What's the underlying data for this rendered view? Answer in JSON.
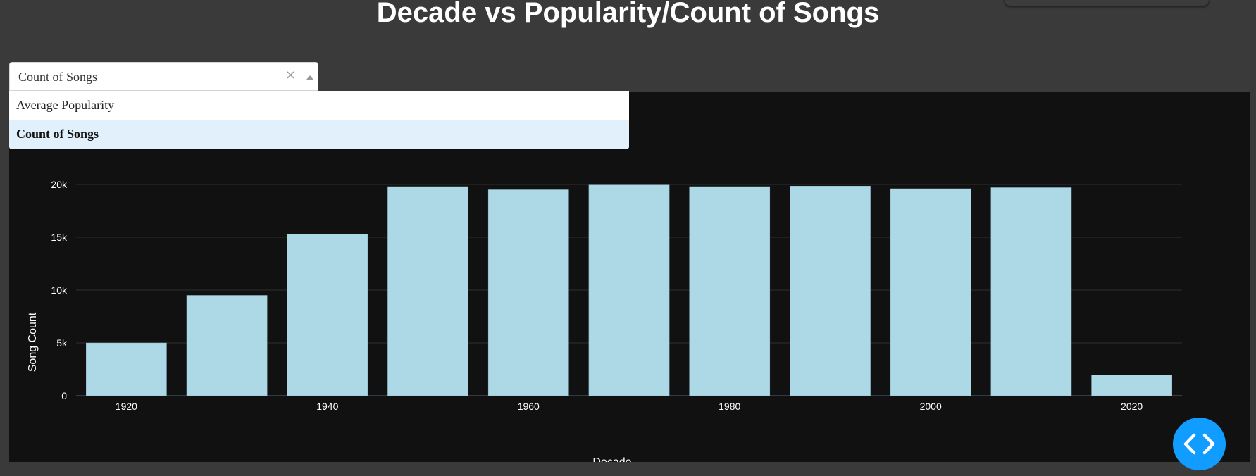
{
  "header": {
    "title": "Decade vs Popularity/Count of Songs"
  },
  "dropdown": {
    "value": "Count of Songs",
    "clear_glyph": "×",
    "options": [
      {
        "label": "Average Popularity",
        "selected": false
      },
      {
        "label": "Count of Songs",
        "selected": true
      }
    ]
  },
  "icons": {
    "clear": "clear-icon",
    "arrow": "caret-up-icon",
    "dev_tools": "code-brackets-icon"
  },
  "colors": {
    "bar": "#add8e6",
    "plot_bg": "#111111",
    "grid": "#2e2e2e",
    "dev_button": "#119dff"
  },
  "chart_data": {
    "type": "bar",
    "x": [
      1920,
      1930,
      1940,
      1950,
      1960,
      1970,
      1980,
      1990,
      2000,
      2010,
      2020
    ],
    "values": [
      5000,
      9500,
      15300,
      19800,
      19500,
      19950,
      19800,
      19850,
      19600,
      19700,
      1950
    ],
    "title": "",
    "xlabel": "Decade",
    "ylabel": "Song Count",
    "ylim": [
      0,
      20000
    ],
    "yticks": [
      0,
      5000,
      10000,
      15000,
      20000
    ],
    "ytick_labels": [
      "0",
      "5k",
      "10k",
      "15k",
      "20k"
    ],
    "xticks": [
      1920,
      1940,
      1960,
      1980,
      2000,
      2020
    ],
    "xtick_labels": [
      "1920",
      "1940",
      "1960",
      "1980",
      "2000",
      "2020"
    ],
    "grid": true
  }
}
